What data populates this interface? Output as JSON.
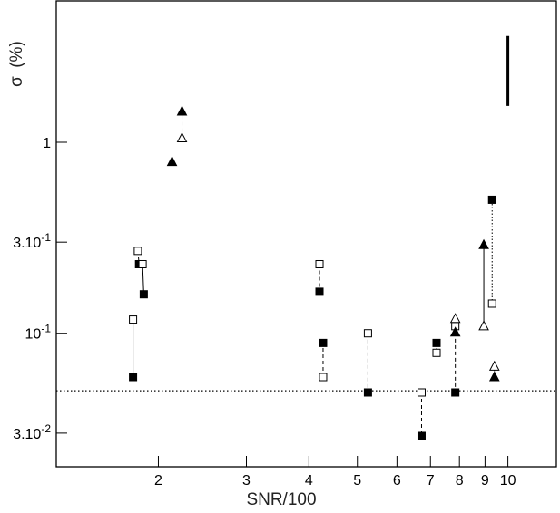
{
  "chart_data": {
    "type": "scatter",
    "xlabel": "SNR/100",
    "ylabel_symbol": "σ",
    "ylabel_unit": "(%)",
    "x_scale": "log",
    "y_scale": "log",
    "xlim": [
      1.25,
      12.5
    ],
    "ylim": [
      0.02,
      5.5
    ],
    "x_ticks": [
      {
        "value": 2,
        "label": "2"
      },
      {
        "value": 3,
        "label": "3"
      },
      {
        "value": 4,
        "label": "4"
      },
      {
        "value": 5,
        "label": "5"
      },
      {
        "value": 6,
        "label": "6"
      },
      {
        "value": 7,
        "label": "7"
      },
      {
        "value": 8,
        "label": "8"
      },
      {
        "value": 9,
        "label": "9"
      },
      {
        "value": 10,
        "label": "10"
      }
    ],
    "y_ticks": [
      {
        "value": 0.03,
        "label_base": "3.10",
        "label_exp": "-2"
      },
      {
        "value": 0.1,
        "label_base": "10",
        "label_exp": "-1"
      },
      {
        "value": 0.3,
        "label_base": "3.10",
        "label_exp": "-1"
      },
      {
        "value": 1,
        "label_base": "1",
        "label_exp": ""
      }
    ],
    "reference_line": {
      "y": 0.05,
      "style": "dotted"
    },
    "scale_bar": {
      "x": 10.0,
      "y_low": 1.55,
      "y_high": 3.6
    },
    "pairs": [
      {
        "marker": "square",
        "style": "solid",
        "open": {
          "x": 1.78,
          "y": 0.118
        },
        "filled": {
          "x": 1.78,
          "y": 0.059
        }
      },
      {
        "marker": "square",
        "style": "dashed",
        "open": {
          "x": 1.82,
          "y": 0.27
        },
        "filled": {
          "x": 1.83,
          "y": 0.23
        }
      },
      {
        "marker": "square",
        "style": "solid",
        "open": {
          "x": 1.86,
          "y": 0.23
        },
        "filled": {
          "x": 1.87,
          "y": 0.16
        }
      },
      {
        "marker": "triangle",
        "style": "dashed",
        "open": {
          "x": 2.23,
          "y": 1.05
        },
        "filled": {
          "x": 2.23,
          "y": 1.45
        }
      },
      {
        "marker": "square",
        "style": "dashed",
        "open": {
          "x": 4.2,
          "y": 0.23
        },
        "filled": {
          "x": 4.2,
          "y": 0.165
        }
      },
      {
        "marker": "square",
        "style": "dashed",
        "open": {
          "x": 4.27,
          "y": 0.059
        },
        "filled": {
          "x": 4.27,
          "y": 0.089
        }
      },
      {
        "marker": "square",
        "style": "dashed",
        "open": {
          "x": 5.25,
          "y": 0.1
        },
        "filled": {
          "x": 5.25,
          "y": 0.049
        }
      },
      {
        "marker": "square",
        "style": "dashed",
        "open": {
          "x": 6.72,
          "y": 0.049
        },
        "filled": {
          "x": 6.72,
          "y": 0.029
        }
      },
      {
        "marker": "square",
        "style": "dotted",
        "open": {
          "x": 7.2,
          "y": 0.079
        },
        "filled": {
          "x": 7.2,
          "y": 0.089
        }
      },
      {
        "marker": "square",
        "style": "dashed",
        "open": {
          "x": 7.85,
          "y": 0.109
        },
        "filled": {
          "x": 7.85,
          "y": 0.049
        }
      },
      {
        "marker": "triangle",
        "style": "dashed",
        "open": {
          "x": 7.85,
          "y": 0.119
        },
        "filled": {
          "x": 7.85,
          "y": 0.101
        }
      },
      {
        "marker": "triangle",
        "style": "solid",
        "open": {
          "x": 8.95,
          "y": 0.109
        },
        "filled": {
          "x": 8.95,
          "y": 0.29
        }
      },
      {
        "marker": "square",
        "style": "dotted",
        "open": {
          "x": 9.3,
          "y": 0.143
        },
        "filled": {
          "x": 9.3,
          "y": 0.5
        }
      },
      {
        "marker": "triangle",
        "style": "dotted",
        "open": {
          "x": 9.4,
          "y": 0.067
        },
        "filled": {
          "x": 9.4,
          "y": 0.059
        }
      }
    ],
    "singles": [
      {
        "marker": "triangle",
        "fill": "filled",
        "x": 2.13,
        "y": 0.79
      }
    ]
  }
}
